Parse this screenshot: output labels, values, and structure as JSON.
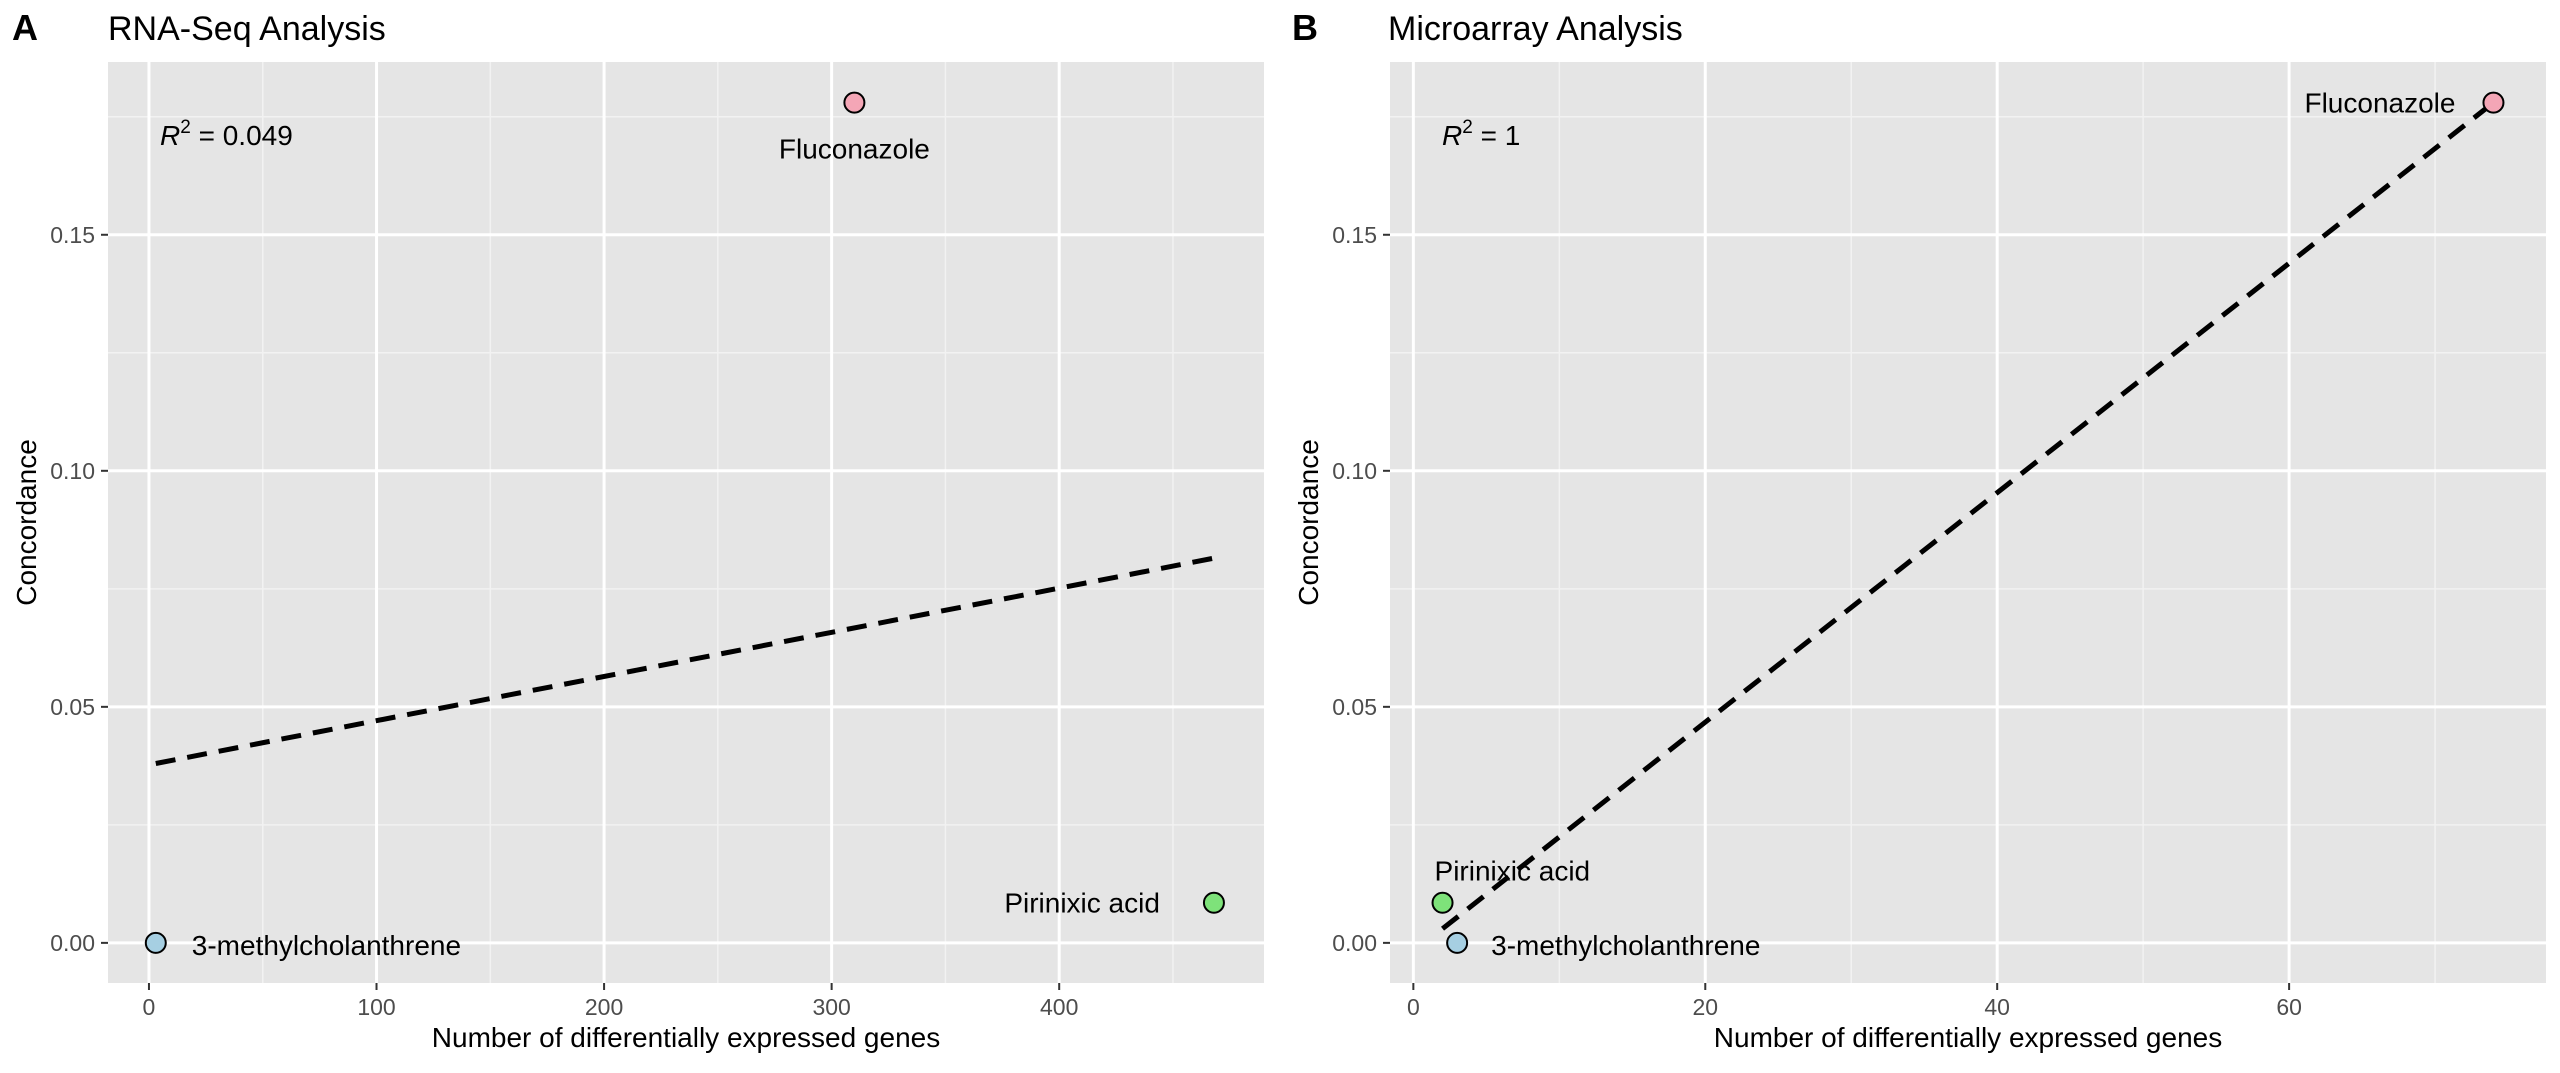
{
  "chart_data": [
    {
      "type": "scatter",
      "panel_label": "A",
      "title": "RNA-Seq Analysis",
      "xlabel": "Number of differentially expressed genes",
      "ylabel": "Concordance",
      "xlim": [
        -18,
        490
      ],
      "ylim": [
        -0.0085,
        0.1866
      ],
      "xticks": [
        0,
        100,
        200,
        300,
        400
      ],
      "xtick_labels": [
        "0",
        "100",
        "200",
        "300",
        "400"
      ],
      "yticks": [
        0.0,
        0.05,
        0.1,
        0.15
      ],
      "ytick_labels": [
        "0.00",
        "0.05",
        "0.10",
        "0.15"
      ],
      "grid": true,
      "r2": {
        "prefix": "R",
        "sup": "2",
        "value": " = 0.049"
      },
      "points": [
        {
          "label": "Fluconazole",
          "x": 310,
          "y": 0.178,
          "color": "#f4a6b6"
        },
        {
          "label": "Pirinixic acid",
          "x": 468,
          "y": 0.0085,
          "color": "#7ee27a"
        },
        {
          "label": "3-methylcholanthrene",
          "x": 3,
          "y": 0.0,
          "color": "#a6cfe2"
        }
      ],
      "trend": {
        "style": "dashed",
        "x": [
          3,
          468
        ],
        "y": [
          0.038,
          0.0815
        ]
      }
    },
    {
      "type": "scatter",
      "panel_label": "B",
      "title": "Microarray Analysis",
      "xlabel": "Number of differentially expressed genes",
      "ylabel": "Concordance",
      "xlim": [
        -1.6,
        77.6
      ],
      "ylim": [
        -0.0085,
        0.1866
      ],
      "xticks": [
        0,
        20,
        40,
        60
      ],
      "xtick_labels": [
        "0",
        "20",
        "40",
        "60"
      ],
      "yticks": [
        0.0,
        0.05,
        0.1,
        0.15
      ],
      "ytick_labels": [
        "0.00",
        "0.05",
        "0.10",
        "0.15"
      ],
      "grid": true,
      "r2": {
        "prefix": "R",
        "sup": "2",
        "value": " = 1"
      },
      "points": [
        {
          "label": "Fluconazole",
          "x": 74,
          "y": 0.178,
          "color": "#f4a6b6"
        },
        {
          "label": "Pirinixic acid",
          "x": 2,
          "y": 0.0085,
          "color": "#7ee27a"
        },
        {
          "label": "3-methylcholanthrene",
          "x": 3,
          "y": 0.0,
          "color": "#a6cfe2"
        }
      ],
      "trend": {
        "style": "dashed",
        "x": [
          2,
          74
        ],
        "y": [
          0.003,
          0.178
        ]
      }
    }
  ]
}
